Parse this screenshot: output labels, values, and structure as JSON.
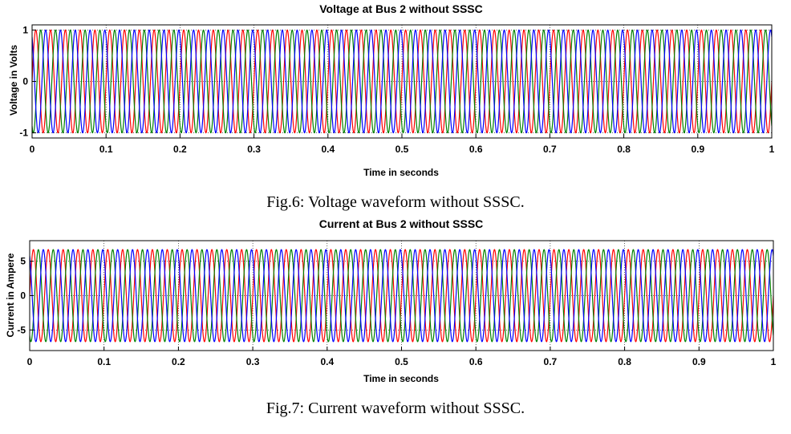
{
  "figures": [
    {
      "caption": "Fig.6: Voltage waveform without SSSC."
    },
    {
      "caption": "Fig.7: Current waveform without SSSC."
    }
  ],
  "chart_data": [
    {
      "type": "line",
      "title": "Voltage at Bus 2 without SSSC",
      "xlabel": "Time in seconds",
      "ylabel": "Voltage in Volts",
      "xlim": [
        0,
        1
      ],
      "ylim": [
        -1.1,
        1.1
      ],
      "xticks": [
        "0",
        "0.1",
        "0.2",
        "0.3",
        "0.4",
        "0.5",
        "0.6",
        "0.7",
        "0.8",
        "0.9",
        "1"
      ],
      "yticks": [
        "-1",
        "0",
        "1"
      ],
      "grid": true,
      "frequency_hz": 50,
      "series": [
        {
          "amplitude": 1.0,
          "phase_deg": 0,
          "color": "#ff0000"
        },
        {
          "amplitude": 1.0,
          "phase_deg": -120,
          "color": "#008000"
        },
        {
          "amplitude": 1.0,
          "phase_deg": 120,
          "color": "#0000ff"
        }
      ]
    },
    {
      "type": "line",
      "title": "Current at Bus 2 without SSSC",
      "xlabel": "Time in seconds",
      "ylabel": "Current in Ampere",
      "xlim": [
        0,
        1
      ],
      "ylim": [
        -8,
        8
      ],
      "xticks": [
        "0",
        "0.1",
        "0.2",
        "0.3",
        "0.4",
        "0.5",
        "0.6",
        "0.7",
        "0.8",
        "0.9",
        "1"
      ],
      "yticks": [
        "-5",
        "0",
        "5"
      ],
      "grid": true,
      "frequency_hz": 50,
      "series": [
        {
          "amplitude": 6.7,
          "phase_deg": 0,
          "color": "#ff0000"
        },
        {
          "amplitude": 6.7,
          "phase_deg": -120,
          "color": "#008000"
        },
        {
          "amplitude": 6.7,
          "phase_deg": 120,
          "color": "#0000ff"
        }
      ]
    }
  ]
}
